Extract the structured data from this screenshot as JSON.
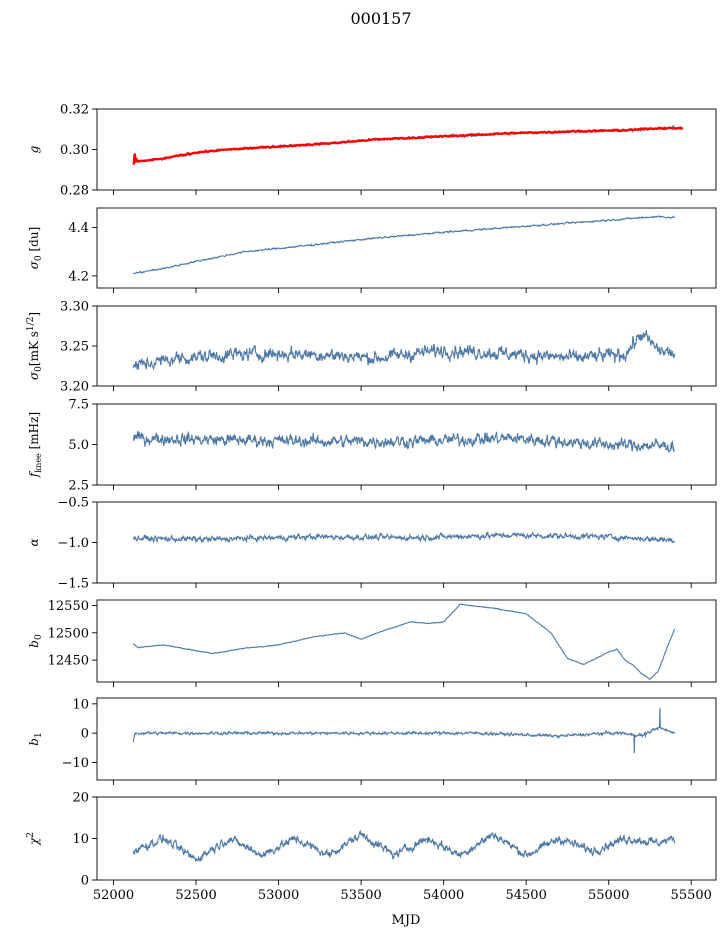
{
  "title": "000157",
  "chart_data": {
    "type": "line",
    "title": "000157",
    "xlabel": "MJD",
    "xlim": [
      51900,
      55650
    ],
    "x_ticks": [
      "52000",
      "52500",
      "53000",
      "53500",
      "54000",
      "54500",
      "55000",
      "55500"
    ],
    "x_tick_values": [
      52000,
      52500,
      53000,
      53500,
      54000,
      54500,
      55000,
      55500
    ],
    "x_range": [
      52120,
      55400
    ],
    "line_color": "#4e79a7",
    "overlay_color": "#ff0000",
    "panels": [
      {
        "id": "g",
        "ylabel": "g",
        "ylim": [
          0.28,
          0.32
        ],
        "y_ticks": [
          "0.28",
          "0.30",
          "0.32"
        ],
        "y_tick_values": [
          0.28,
          0.3,
          0.32
        ],
        "series": [
          {
            "x": [
              52120,
              52200,
              52300,
              52500,
              52700,
              53000,
              53300,
              53600,
              54000,
              54400,
              54800,
              55100,
              55300,
              55400
            ],
            "values": [
              0.294,
              0.2945,
              0.2955,
              0.2985,
              0.3,
              0.3015,
              0.303,
              0.305,
              0.3065,
              0.308,
              0.309,
              0.3095,
              0.3105,
              0.311
            ],
            "noise": 0.0007
          },
          {
            "x": [
              52120,
              52200,
              52300,
              52500,
              52700,
              53000,
              53300,
              53600,
              54000,
              54400,
              54800,
              55100,
              55300,
              55450
            ],
            "values": [
              0.294,
              0.2945,
              0.2955,
              0.2985,
              0.3,
              0.3015,
              0.303,
              0.305,
              0.3065,
              0.308,
              0.309,
              0.3095,
              0.3105,
              0.3105
            ],
            "noise": 0.0004,
            "overlay": true
          }
        ]
      },
      {
        "id": "sigma0-du",
        "ylabel": "σ0 [du]",
        "ylim": [
          4.15,
          4.48
        ],
        "y_ticks": [
          "4.2",
          "4.4"
        ],
        "y_tick_values": [
          4.2,
          4.4
        ],
        "series": [
          {
            "x": [
              52120,
              52300,
              52500,
              52800,
              53100,
              53500,
              54000,
              54500,
              55000,
              55300,
              55400
            ],
            "values": [
              4.21,
              4.23,
              4.26,
              4.3,
              4.32,
              4.35,
              4.38,
              4.405,
              4.43,
              4.445,
              4.44
            ],
            "noise": 0.004
          }
        ]
      },
      {
        "id": "sigma0-mks",
        "ylabel": "σ0[mK s^1/2]",
        "ylim": [
          3.2,
          3.3
        ],
        "y_ticks": [
          "3.20",
          "3.25",
          "3.30"
        ],
        "y_tick_values": [
          3.2,
          3.25,
          3.3
        ],
        "series": [
          {
            "x": [
              52120,
              52400,
              52800,
              53200,
              53600,
              54000,
              54400,
              54800,
              55100,
              55200,
              55300,
              55400
            ],
            "values": [
              3.225,
              3.235,
              3.24,
              3.24,
              3.235,
              3.245,
              3.24,
              3.235,
              3.24,
              3.265,
              3.245,
              3.24
            ],
            "noise": 0.01
          }
        ]
      },
      {
        "id": "fknee",
        "ylabel": "fknee [mHz]",
        "ylim": [
          2.5,
          7.5
        ],
        "y_ticks": [
          "2.5",
          "5.0",
          "7.5"
        ],
        "y_tick_values": [
          2.5,
          5.0,
          7.5
        ],
        "series": [
          {
            "x": [
              52120,
              52600,
              53200,
              53800,
              54400,
              55000,
              55400
            ],
            "values": [
              5.4,
              5.3,
              5.2,
              5.2,
              5.4,
              5.0,
              4.9
            ],
            "noise": 0.45
          }
        ]
      },
      {
        "id": "alpha",
        "ylabel": "α",
        "ylim": [
          -1.5,
          -0.5
        ],
        "y_ticks": [
          "−1.5",
          "−1.0",
          "−0.5"
        ],
        "y_tick_values": [
          -1.5,
          -1.0,
          -0.5
        ],
        "series": [
          {
            "x": [
              52120,
              52600,
              53200,
              53800,
              54400,
              55000,
              55400
            ],
            "values": [
              -0.95,
              -0.96,
              -0.93,
              -0.94,
              -0.91,
              -0.93,
              -0.97
            ],
            "noise": 0.04
          }
        ]
      },
      {
        "id": "b0",
        "ylabel": "b0",
        "ylim": [
          12410,
          12560
        ],
        "y_ticks": [
          "12450",
          "12500",
          "12550"
        ],
        "y_tick_values": [
          12450,
          12500,
          12550
        ],
        "series": [
          {
            "x": [
              52120,
              52150,
              52300,
              52450,
              52600,
              52800,
              53000,
              53200,
              53400,
              53500,
              53600,
              53800,
              53900,
              54000,
              54100,
              54300,
              54500,
              54650,
              54750,
              54850,
              55000,
              55050,
              55100,
              55150,
              55200,
              55250,
              55300,
              55350,
              55400
            ],
            "values": [
              12480,
              12473,
              12478,
              12470,
              12462,
              12472,
              12478,
              12492,
              12500,
              12488,
              12500,
              12520,
              12517,
              12520,
              12552,
              12545,
              12535,
              12500,
              12453,
              12442,
              12465,
              12470,
              12450,
              12440,
              12425,
              12415,
              12430,
              12470,
              12507
            ],
            "noise": 0.8
          }
        ]
      },
      {
        "id": "b1",
        "ylabel": "b1",
        "ylim": [
          -16,
          12
        ],
        "y_ticks": [
          "−10",
          "0",
          "10"
        ],
        "y_tick_values": [
          -10,
          0,
          10
        ],
        "series": [
          {
            "x": [
              52120,
              52130,
              52400,
              53000,
              53600,
              54200,
              54700,
              55000,
              55100,
              55200,
              55300,
              55400
            ],
            "values": [
              -3,
              0,
              0,
              0,
              0,
              0,
              -1,
              0,
              0,
              -1,
              2,
              0
            ],
            "noise": 0.6
          }
        ]
      },
      {
        "id": "chi2",
        "ylabel": "χ²",
        "ylim": [
          0,
          20
        ],
        "y_ticks": [
          "0",
          "10",
          "20"
        ],
        "y_tick_values": [
          0,
          10,
          20
        ],
        "series": [
          {
            "x": [
              52120,
              52300,
              52500,
              52700,
              52900,
              53100,
              53300,
              53500,
              53700,
              53900,
              54100,
              54300,
              54500,
              54700,
              54900,
              55100,
              55300,
              55400
            ],
            "values": [
              7,
              10,
              5,
              10,
              6,
              10,
              6,
              11,
              6,
              10,
              6,
              11,
              6,
              10,
              7,
              10,
              9,
              10
            ],
            "noise": 1.2
          }
        ]
      }
    ]
  }
}
